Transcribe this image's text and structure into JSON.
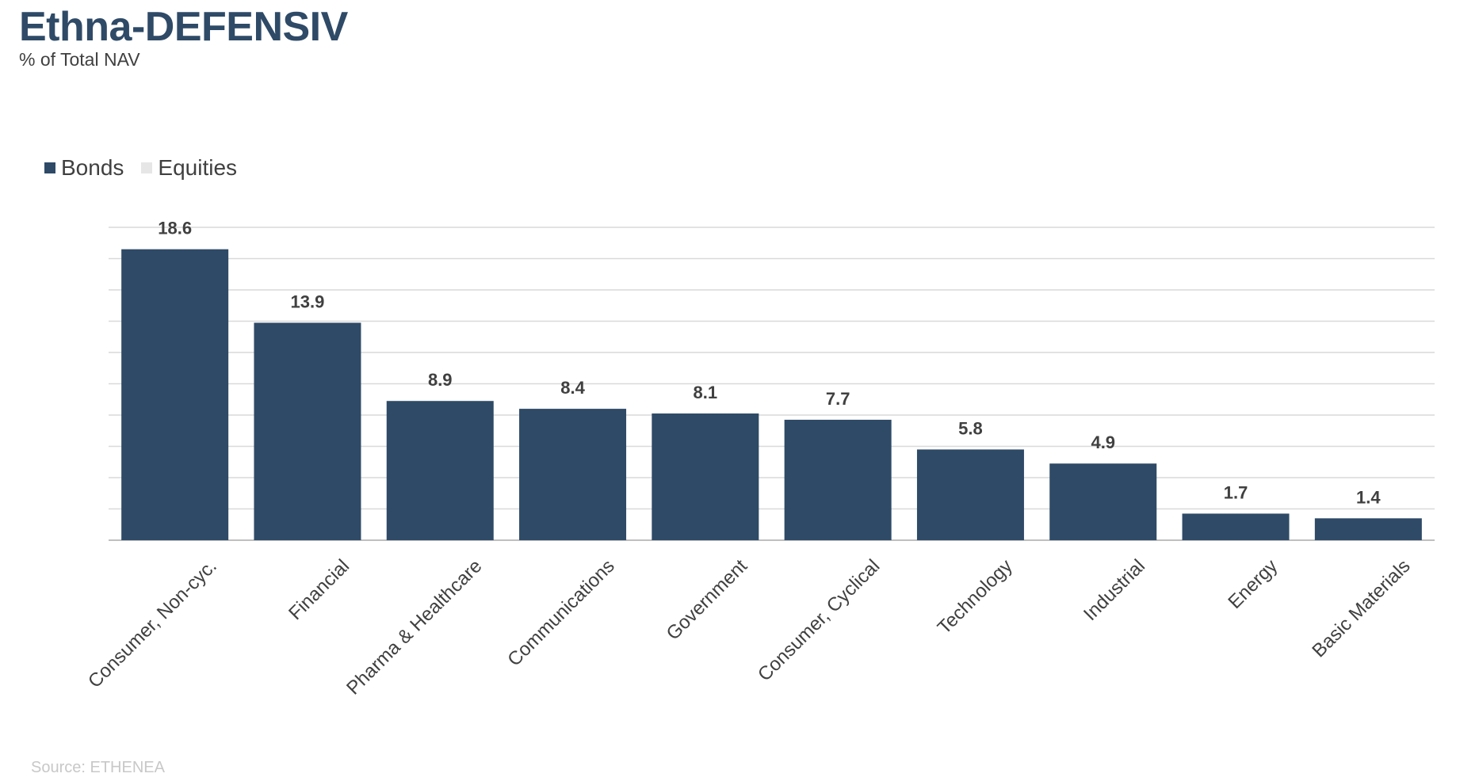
{
  "header": {
    "title": "Ethna-DEFENSIV",
    "subtitle": "% of Total NAV"
  },
  "legend": {
    "items": [
      {
        "label": "Bonds",
        "color": "#2e4a67"
      },
      {
        "label": "Equities",
        "color": "#e6e6e6"
      }
    ]
  },
  "footer": {
    "source": "Source: ETHENEA"
  },
  "colors": {
    "bar": "#2e4a67",
    "grid": "#d9d9d9",
    "text": "#404040"
  },
  "chart_data": {
    "type": "bar",
    "title": "Ethna-DEFENSIV",
    "subtitle": "% of Total NAV",
    "categories": [
      "Consumer, Non-cyc.",
      "Financial",
      "Pharma & Healthcare",
      "Communications",
      "Government",
      "Consumer, Cyclical",
      "Technology",
      "Industrial",
      "Energy",
      "Basic Materials"
    ],
    "series": [
      {
        "name": "Bonds",
        "values": [
          18.6,
          13.9,
          8.9,
          8.4,
          8.1,
          7.7,
          5.8,
          4.9,
          1.7,
          1.4
        ]
      },
      {
        "name": "Equities",
        "values": [
          0,
          0,
          0,
          0,
          0,
          0,
          0,
          0,
          0,
          0
        ]
      }
    ],
    "ylim": [
      0,
      20
    ],
    "grid": true,
    "legend_position": "top-left",
    "data_labels": true
  }
}
